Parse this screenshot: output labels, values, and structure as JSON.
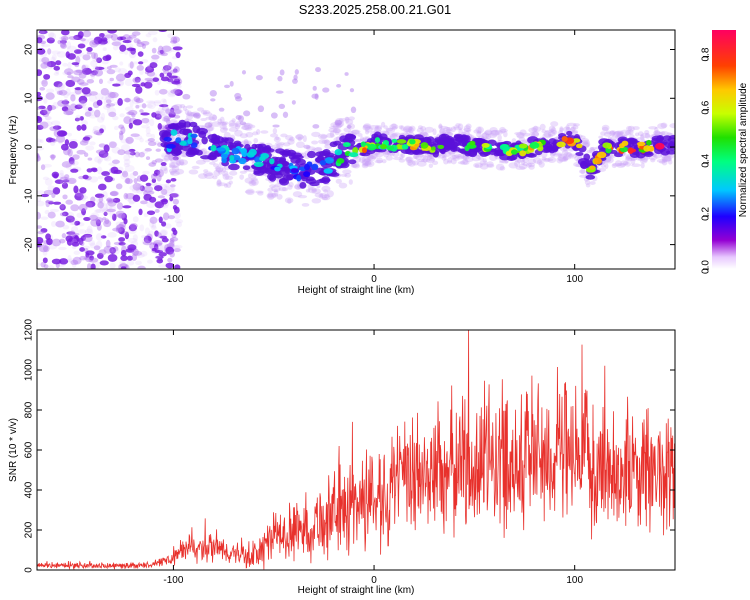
{
  "title": "S233.2025.258.00.21.G01",
  "colors": {
    "snr_line": "#e8312c",
    "frame": "#000000",
    "speckle": "#8a2be2"
  },
  "chart_data": [
    {
      "type": "heatmap",
      "xlabel": "Height of straight line (km)",
      "ylabel": "Frequency (Hz)",
      "xlim": [
        -168,
        150
      ],
      "ylim": [
        -25,
        24
      ],
      "xticks": [
        -100,
        0,
        100
      ],
      "yticks": [
        -20,
        -10,
        0,
        10,
        20
      ],
      "colorbar": {
        "label": "Normalized spectral amplitude",
        "range": [
          0.0,
          0.9
        ],
        "ticks": [
          0.0,
          0.2,
          0.4,
          0.6,
          0.8
        ],
        "tick_labels": [
          "0.0",
          "0.2",
          "0.4",
          "0.6",
          "0.8"
        ]
      },
      "ridge": {
        "x": [
          -105,
          -95,
          -85,
          -75,
          -65,
          -55,
          -45,
          -35,
          -25,
          -15,
          -5,
          0,
          10,
          20,
          30,
          40,
          50,
          60,
          70,
          80,
          90,
          100,
          108,
          115,
          125,
          135,
          145
        ],
        "freq": [
          1,
          2,
          1,
          -1,
          -2,
          -3,
          -4,
          -5,
          -4,
          -1,
          0,
          1,
          0.5,
          0.5,
          0,
          1,
          0,
          0,
          -1,
          0,
          1,
          1.5,
          -5,
          0,
          0,
          0,
          0.5
        ],
        "amplitude": [
          0.3,
          0.35,
          0.3,
          0.35,
          0.3,
          0.35,
          0.3,
          0.25,
          0.3,
          0.5,
          0.7,
          0.55,
          0.6,
          0.65,
          0.6,
          0.55,
          0.6,
          0.55,
          0.6,
          0.7,
          0.75,
          0.7,
          0.65,
          0.7,
          0.75,
          0.8,
          0.85
        ]
      },
      "noise_region": {
        "x_from": -168,
        "x_to": -105
      }
    },
    {
      "type": "line",
      "xlabel": "Height of straight line (km)",
      "ylabel": "SNR (10 * v/v)",
      "xlim": [
        -168,
        150
      ],
      "ylim": [
        0,
        1200
      ],
      "xticks": [
        -100,
        0,
        100
      ],
      "yticks": [
        0,
        200,
        400,
        600,
        800,
        1000,
        1200
      ],
      "series": [
        {
          "name": "SNR",
          "x": [
            -168,
            -150,
            -130,
            -110,
            -100,
            -95,
            -90,
            -85,
            -80,
            -75,
            -70,
            -65,
            -60,
            -55,
            -50,
            -45,
            -40,
            -35,
            -30,
            -25,
            -20,
            -15,
            -10,
            -5,
            0,
            10,
            20,
            30,
            40,
            50,
            60,
            70,
            80,
            90,
            100,
            110,
            120,
            130,
            140,
            150
          ],
          "mean": [
            25,
            22,
            20,
            25,
            60,
            100,
            110,
            95,
            110,
            100,
            80,
            70,
            70,
            110,
            170,
            180,
            190,
            210,
            230,
            250,
            280,
            310,
            330,
            350,
            380,
            420,
            460,
            490,
            520,
            540,
            560,
            560,
            580,
            580,
            560,
            520,
            500,
            500,
            490,
            480
          ],
          "spread": [
            15,
            15,
            15,
            15,
            40,
            60,
            70,
            70,
            80,
            70,
            60,
            60,
            80,
            110,
            120,
            130,
            150,
            170,
            180,
            200,
            220,
            240,
            260,
            260,
            280,
            300,
            320,
            340,
            360,
            380,
            380,
            380,
            400,
            380,
            360,
            340,
            320,
            320,
            330,
            300
          ],
          "peak_max": 1200
        }
      ]
    }
  ]
}
